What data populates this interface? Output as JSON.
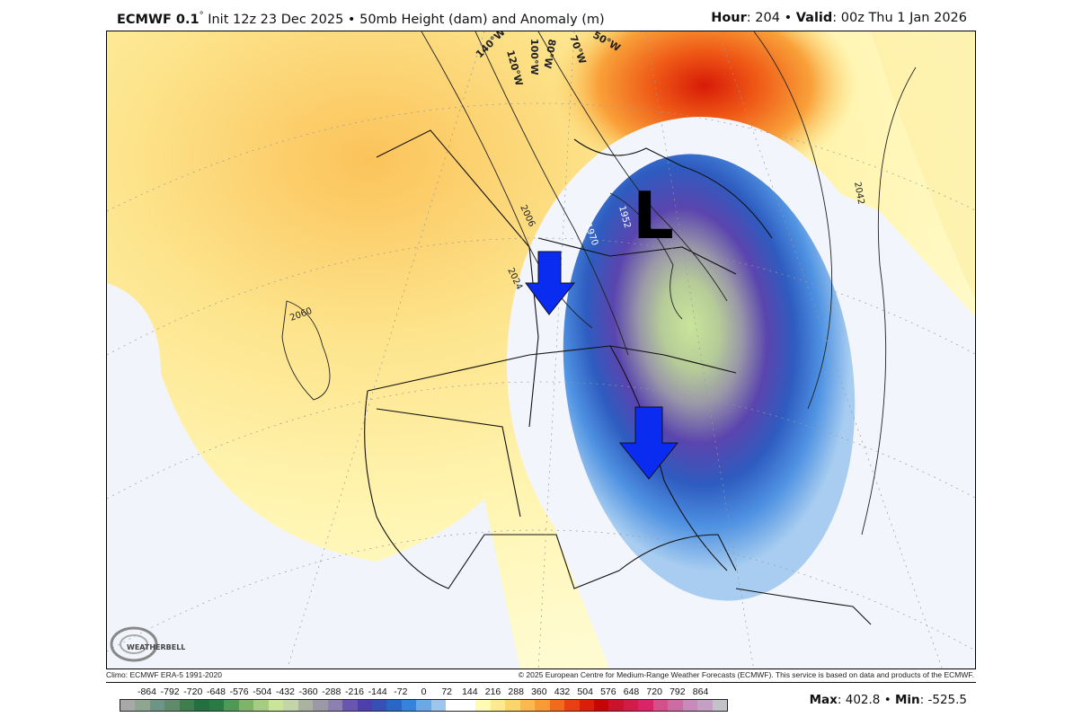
{
  "header": {
    "model": "ECMWF 0.1",
    "degree": "°",
    "init": "Init 12z 23 Dec 2025",
    "sep": "•",
    "product": "50mb Height (dam) and Anomaly (m)",
    "hour_label": "Hour",
    "hour": ": 204",
    "valid_label": "Valid",
    "valid": ": 00z Thu 1 Jan 2026"
  },
  "map": {
    "low_marker": "L",
    "meridian_labels": [
      "140°W",
      "120°W",
      "100°W",
      "80°W",
      "70°W",
      "50°W"
    ],
    "contour_labels": [
      "2060",
      "2006",
      "2024",
      "1970",
      "1952",
      "2042"
    ],
    "arrow_color": "#0a2cf0",
    "logo_text": "WEATHERBELL"
  },
  "footer": {
    "climo": "Climo: ECMWF ERA-5 1991-2020",
    "copyright": "© 2025 European Centre for Medium-Range Weather Forecasts (ECMWF). This service is based on data and products of the ECMWF.",
    "max_label": "Max",
    "max_value": ": 402.8",
    "min_label": "Min",
    "min_value": ": -525.5"
  },
  "colorbar": {
    "ticks": [
      "-864",
      "-792",
      "-720",
      "-648",
      "-576",
      "-504",
      "-432",
      "-360",
      "-288",
      "-216",
      "-144",
      "-72",
      "0",
      "72",
      "144",
      "216",
      "288",
      "360",
      "432",
      "504",
      "576",
      "648",
      "720",
      "792",
      "864"
    ],
    "colors": [
      "#a8a8a8",
      "#8fa58f",
      "#6e9488",
      "#5f8a6c",
      "#3f7d4e",
      "#246f40",
      "#2a7a44",
      "#4e9a55",
      "#7db46a",
      "#a6cc83",
      "#c9e59a",
      "#c3d4a8",
      "#aab3a0",
      "#9a99a5",
      "#8c80b0",
      "#6a55b0",
      "#4e3fae",
      "#3650b8",
      "#2866c8",
      "#3484de",
      "#6aa8e8",
      "#9cc6ee",
      "#ffffff",
      "#ffffff",
      "#fffbb4",
      "#fde98e",
      "#fcd56a",
      "#fbb84c",
      "#f99a34",
      "#f26b1a",
      "#e84010",
      "#d82008",
      "#c40606",
      "#c9122c",
      "#d21c48",
      "#d9246a",
      "#d45088",
      "#cc6ca2",
      "#c88abb",
      "#c6a0c4",
      "#c2c2c8"
    ]
  }
}
